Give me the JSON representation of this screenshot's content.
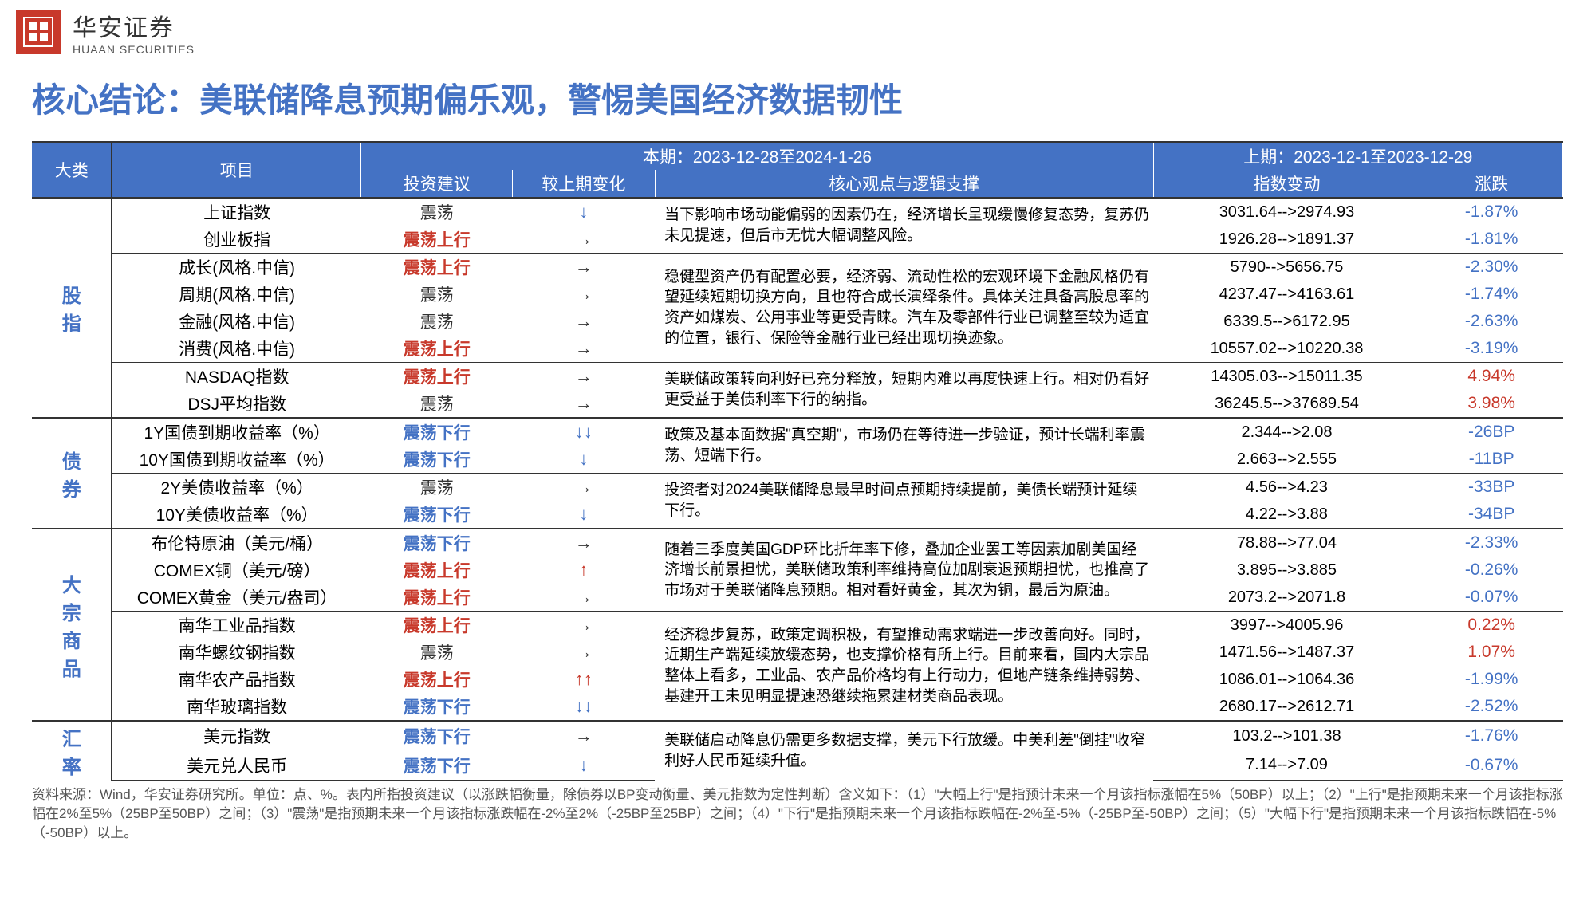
{
  "header": {
    "logo_char": "安",
    "company_cn": "华安证券",
    "company_en": "HUAAN SECURITIES"
  },
  "title": "核心结论：美联储降息预期偏乐观，警惕美国经济数据韧性",
  "table_header": {
    "category": "大类",
    "item": "项目",
    "current_period": "本期：2023-12-28至2024-1-26",
    "prev_period": "上期：2023-12-1至2023-12-29",
    "advice": "投资建议",
    "change_vs_prev": "较上期变化",
    "viewpoint": "核心观点与逻辑支撑",
    "index_change": "指数变动",
    "pct_change": "涨跌"
  },
  "colors": {
    "header_bg": "#4472c4",
    "accent_blue": "#4472c4",
    "accent_red": "#c8392b",
    "text_dark": "#333333"
  },
  "categories": [
    {
      "name": "股指",
      "rows": [
        "r0",
        "r1",
        "r2",
        "r3",
        "r4",
        "r5",
        "r6",
        "r7"
      ],
      "groups": [
        [
          0,
          2
        ],
        [
          2,
          6
        ],
        [
          6,
          8
        ]
      ]
    },
    {
      "name": "债券",
      "rows": [
        "r8",
        "r9",
        "r10",
        "r11"
      ],
      "groups": [
        [
          0,
          2
        ],
        [
          2,
          4
        ]
      ]
    },
    {
      "name": "大宗商品",
      "rows": [
        "r12",
        "r13",
        "r14",
        "r15",
        "r16",
        "r17",
        "r18"
      ],
      "groups": [
        [
          0,
          3
        ],
        [
          3,
          7
        ]
      ]
    },
    {
      "name": "汇率",
      "rows": [
        "r19",
        "r20"
      ],
      "groups": [
        [
          0,
          2
        ]
      ]
    }
  ],
  "rows": {
    "r0": {
      "item": "上证指数",
      "advice": "震荡",
      "advice_style": "plain",
      "arrow": "↓",
      "arrow_style": "blue",
      "idx": "3031.64-->2974.93",
      "pct": "-1.87%",
      "pct_style": "neg"
    },
    "r1": {
      "item": "创业板指",
      "advice": "震荡上行",
      "advice_style": "red",
      "arrow": "→",
      "arrow_style": "plain",
      "idx": "1926.28-->1891.37",
      "pct": "-1.81%",
      "pct_style": "neg"
    },
    "r2": {
      "item": "成长(风格.中信)",
      "advice": "震荡上行",
      "advice_style": "red",
      "arrow": "→",
      "arrow_style": "plain",
      "idx": "5790-->5656.75",
      "pct": "-2.30%",
      "pct_style": "neg"
    },
    "r3": {
      "item": "周期(风格.中信)",
      "advice": "震荡",
      "advice_style": "plain",
      "arrow": "→",
      "arrow_style": "plain",
      "idx": "4237.47-->4163.61",
      "pct": "-1.74%",
      "pct_style": "neg"
    },
    "r4": {
      "item": "金融(风格.中信)",
      "advice": "震荡",
      "advice_style": "plain",
      "arrow": "→",
      "arrow_style": "plain",
      "idx": "6339.5-->6172.95",
      "pct": "-2.63%",
      "pct_style": "neg"
    },
    "r5": {
      "item": "消费(风格.中信)",
      "advice": "震荡上行",
      "advice_style": "red",
      "arrow": "→",
      "arrow_style": "plain",
      "idx": "10557.02-->10220.38",
      "pct": "-3.19%",
      "pct_style": "neg"
    },
    "r6": {
      "item": "NASDAQ指数",
      "advice": "震荡上行",
      "advice_style": "red",
      "arrow": "→",
      "arrow_style": "plain",
      "idx": "14305.03-->15011.35",
      "pct": "4.94%",
      "pct_style": "pos"
    },
    "r7": {
      "item": "DSJ平均指数",
      "advice": "震荡",
      "advice_style": "plain",
      "arrow": "→",
      "arrow_style": "plain",
      "idx": "36245.5-->37689.54",
      "pct": "3.98%",
      "pct_style": "pos"
    },
    "r8": {
      "item": "1Y国债到期收益率（%）",
      "advice": "震荡下行",
      "advice_style": "blue",
      "arrow": "↓↓",
      "arrow_style": "blue",
      "idx": "2.344-->2.08",
      "pct": "-26BP",
      "pct_style": "plain"
    },
    "r9": {
      "item": "10Y国债到期收益率（%）",
      "advice": "震荡下行",
      "advice_style": "blue",
      "arrow": "↓",
      "arrow_style": "blue",
      "idx": "2.663-->2.555",
      "pct": "-11BP",
      "pct_style": "plain"
    },
    "r10": {
      "item": "2Y美债收益率（%）",
      "advice": "震荡",
      "advice_style": "plain",
      "arrow": "→",
      "arrow_style": "plain",
      "idx": "4.56-->4.23",
      "pct": "-33BP",
      "pct_style": "plain"
    },
    "r11": {
      "item": "10Y美债收益率（%）",
      "advice": "震荡下行",
      "advice_style": "blue",
      "arrow": "↓",
      "arrow_style": "blue",
      "idx": "4.22-->3.88",
      "pct": "-34BP",
      "pct_style": "plain"
    },
    "r12": {
      "item": "布伦特原油（美元/桶）",
      "advice": "震荡下行",
      "advice_style": "blue",
      "arrow": "→",
      "arrow_style": "plain",
      "idx": "78.88-->77.04",
      "pct": "-2.33%",
      "pct_style": "neg"
    },
    "r13": {
      "item": "COMEX铜（美元/磅）",
      "advice": "震荡上行",
      "advice_style": "red",
      "arrow": "↑",
      "arrow_style": "red",
      "idx": "3.895-->3.885",
      "pct": "-0.26%",
      "pct_style": "neg"
    },
    "r14": {
      "item": "COMEX黄金（美元/盎司）",
      "advice": "震荡上行",
      "advice_style": "red",
      "arrow": "→",
      "arrow_style": "plain",
      "idx": "2073.2-->2071.8",
      "pct": "-0.07%",
      "pct_style": "neg"
    },
    "r15": {
      "item": "南华工业品指数",
      "advice": "震荡上行",
      "advice_style": "red",
      "arrow": "→",
      "arrow_style": "plain",
      "idx": "3997-->4005.96",
      "pct": "0.22%",
      "pct_style": "pos"
    },
    "r16": {
      "item": "南华螺纹钢指数",
      "advice": "震荡",
      "advice_style": "plain",
      "arrow": "→",
      "arrow_style": "plain",
      "idx": "1471.56-->1487.37",
      "pct": "1.07%",
      "pct_style": "pos"
    },
    "r17": {
      "item": "南华农产品指数",
      "advice": "震荡上行",
      "advice_style": "red",
      "arrow": "↑↑",
      "arrow_style": "red",
      "idx": "1086.01-->1064.36",
      "pct": "-1.99%",
      "pct_style": "neg"
    },
    "r18": {
      "item": "南华玻璃指数",
      "advice": "震荡下行",
      "advice_style": "blue",
      "arrow": "↓↓",
      "arrow_style": "blue",
      "idx": "2680.17-->2612.71",
      "pct": "-2.52%",
      "pct_style": "neg"
    },
    "r19": {
      "item": "美元指数",
      "advice": "震荡下行",
      "advice_style": "blue",
      "arrow": "→",
      "arrow_style": "plain",
      "idx": "103.2-->101.38",
      "pct": "-1.76%",
      "pct_style": "neg"
    },
    "r20": {
      "item": "美元兑人民币",
      "advice": "震荡下行",
      "advice_style": "blue",
      "arrow": "↓",
      "arrow_style": "blue",
      "idx": "7.14-->7.09",
      "pct": "-0.67%",
      "pct_style": "neg"
    }
  },
  "viewpoints": {
    "股指_0": "当下影响市场动能偏弱的因素仍在，经济增长呈现缓慢修复态势，复苏仍未见提速，但后市无忧大幅调整风险。",
    "股指_1": "稳健型资产仍有配置必要，经济弱、流动性松的宏观环境下金融风格仍有望延续短期切换方向，且也符合成长演绎条件。具体关注具备高股息率的资产如煤炭、公用事业等更受青睐。汽车及零部件行业已调整至较为适宜的位置，银行、保险等金融行业已经出现切换迹象。",
    "股指_2": "美联储政策转向利好已充分释放，短期内难以再度快速上行。相对仍看好更受益于美债利率下行的纳指。",
    "债券_0": "政策及基本面数据\"真空期\"，市场仍在等待进一步验证，预计长端利率震荡、短端下行。",
    "债券_1": "投资者对2024美联储降息最早时间点预期持续提前，美债长端预计延续下行。",
    "大宗商品_0": "随着三季度美国GDP环比折年率下修，叠加企业罢工等因素加剧美国经济增长前景担忧，美联储政策利率维持高位加剧衰退预期担忧，也推高了市场对于美联储降息预期。相对看好黄金，其次为铜，最后为原油。",
    "大宗商品_1": "经济稳步复苏，政策定调积极，有望推动需求端进一步改善向好。同时，近期生产端延续放缓态势，也支撑价格有所上行。目前来看，国内大宗品整体上看多，工业品、农产品价格均有上行动力，但地产链条维持弱势、基建开工未见明显提速恐继续拖累建材类商品表现。",
    "汇率_0": "美联储启动降息仍需更多数据支撑，美元下行放缓。中美利差\"倒挂\"收窄利好人民币延续升值。"
  },
  "footnote": "资料来源：Wind，华安证券研究所。单位：点、%。表内所指投资建议（以涨跌幅衡量，除债券以BP变动衡量、美元指数为定性判断）含义如下：（1）\"大幅上行\"是指预计未来一个月该指标涨幅在5%（50BP）以上；（2）\"上行\"是指预期未来一个月该指标涨幅在2%至5%（25BP至50BP）之间；（3）\"震荡\"是指预期未来一个月该指标涨跌幅在-2%至2%（-25BP至25BP）之间；（4）\"下行\"是指预期未来一个月该指标跌幅在-2%至-5%（-25BP至-50BP）之间；（5）\"大幅下行\"是指预期未来一个月该指标跌幅在-5%（-50BP）以上。"
}
